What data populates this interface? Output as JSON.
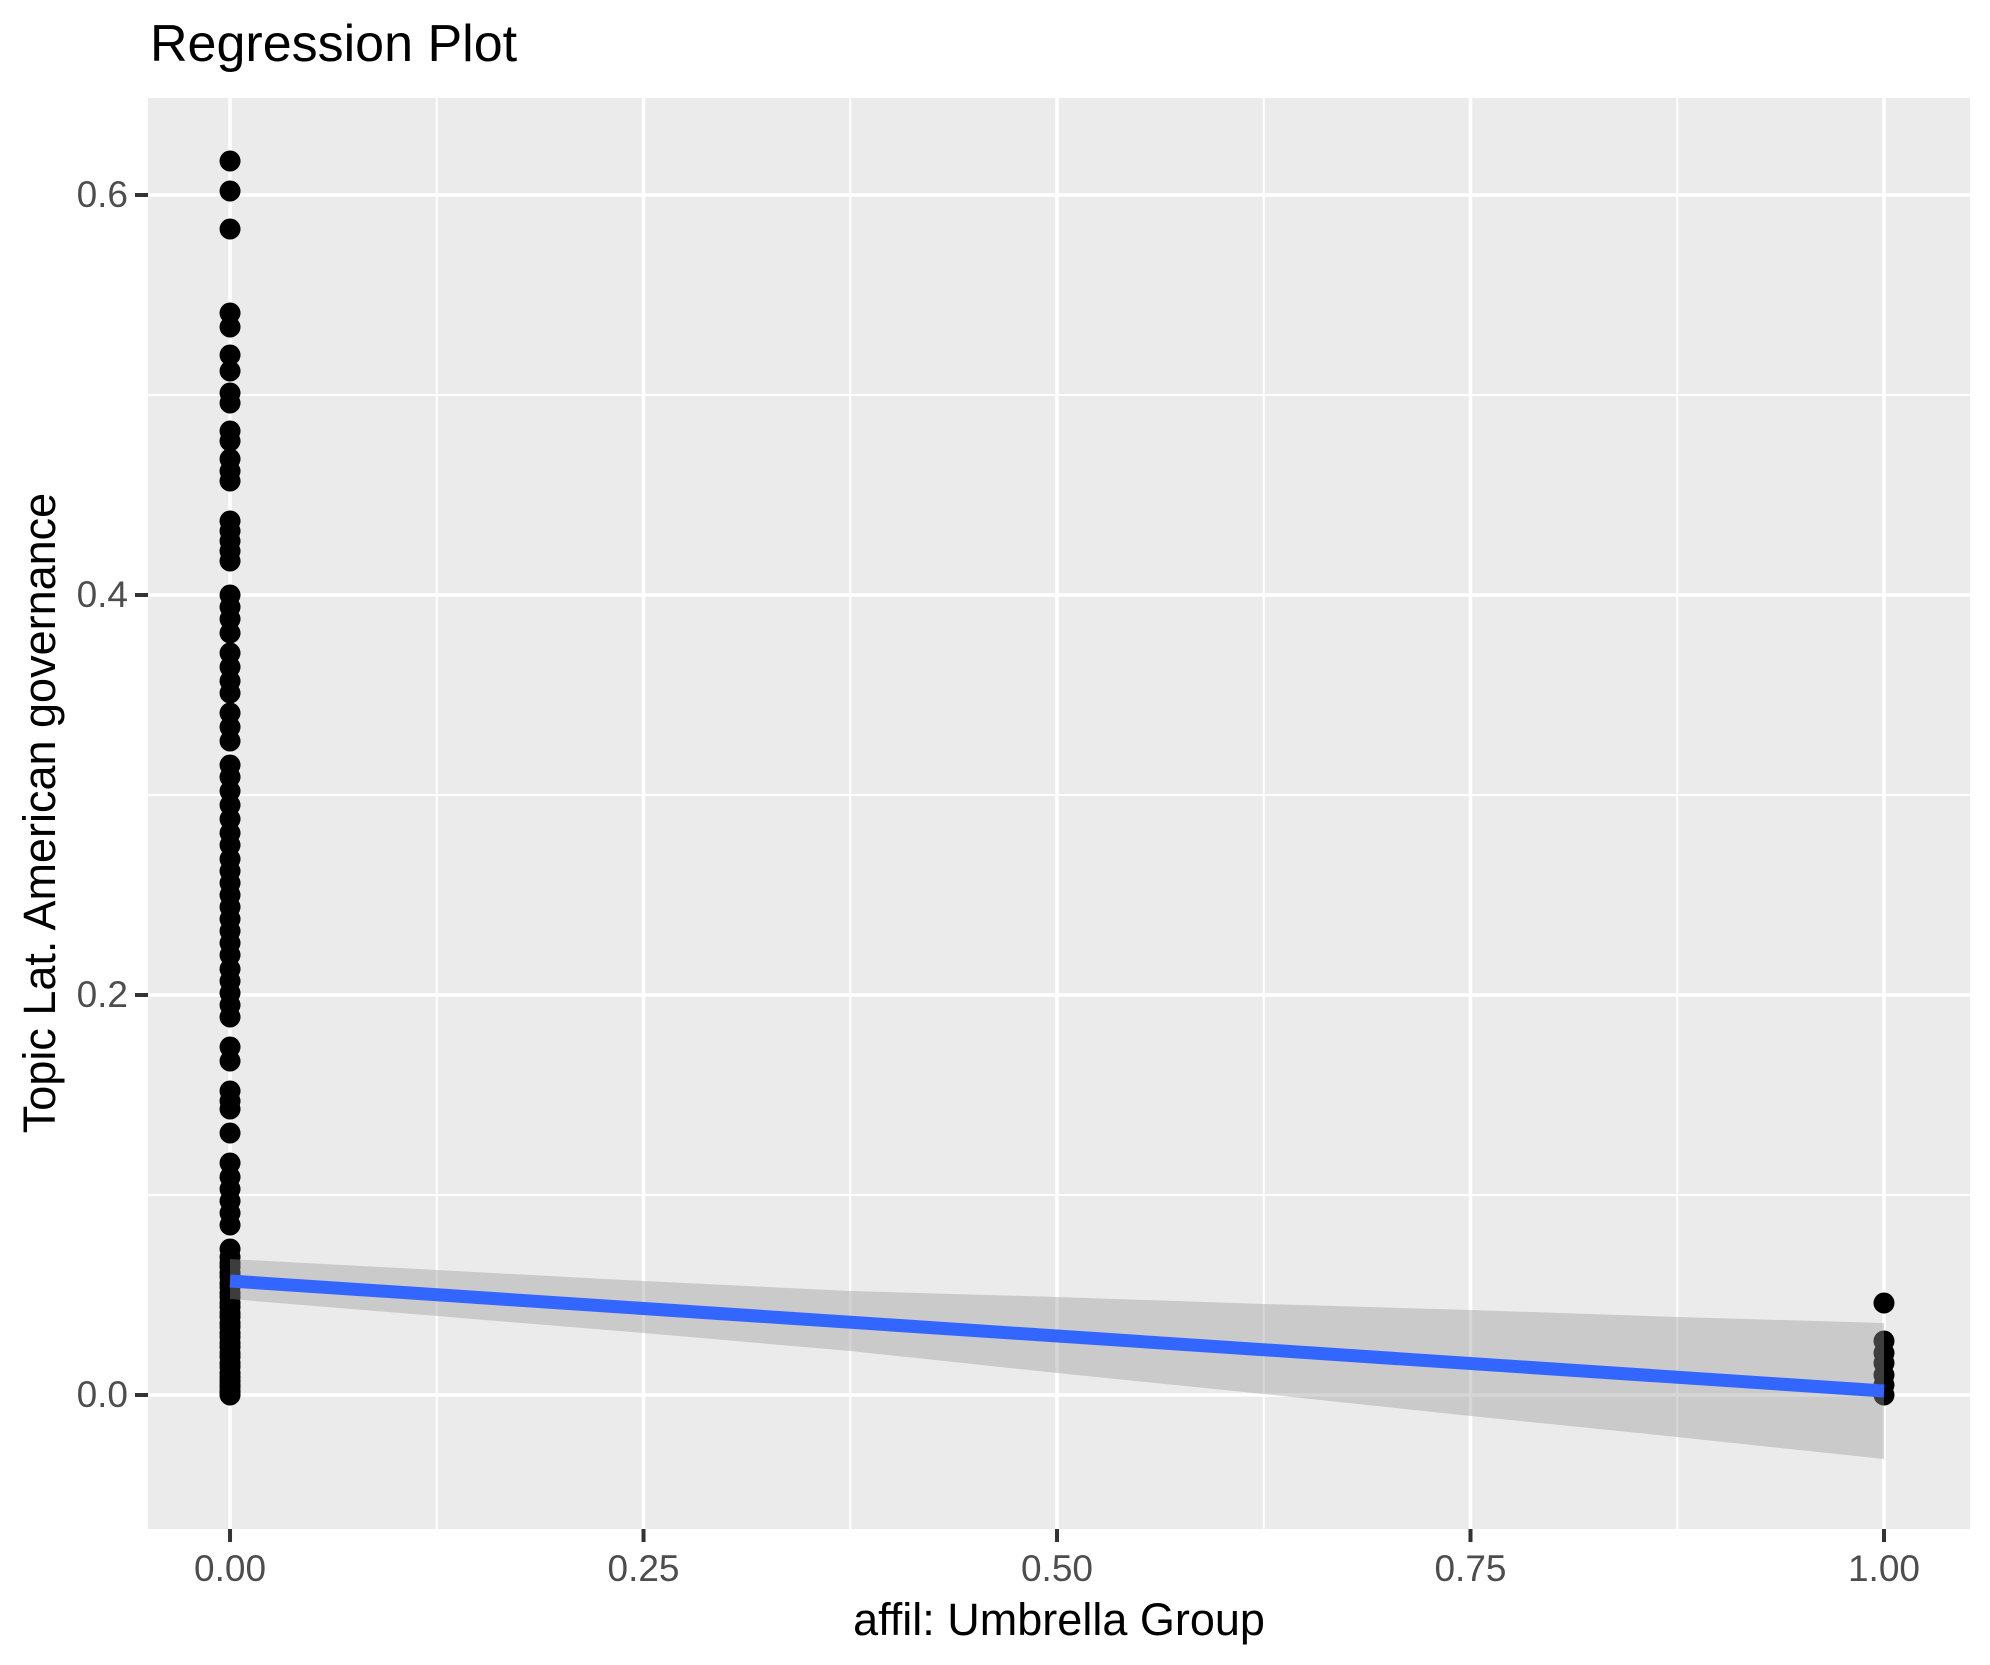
{
  "chart_data": {
    "type": "scatter",
    "title": "Regression Plot",
    "xlabel": "affil: Umbrella Group",
    "ylabel": "Topic Lat. American governance",
    "xlim": [
      -0.0496,
      1.052
    ],
    "ylim": [
      -0.067,
      0.6485
    ],
    "grid": "major+minor, white on grey panel",
    "legend_position": "none",
    "x_ticks": {
      "values": [
        0,
        0.25,
        0.5,
        0.75,
        1.0
      ],
      "labels": [
        "0.00",
        "0.25",
        "0.50",
        "0.75",
        "1.00"
      ]
    },
    "y_ticks": {
      "values": [
        0.0,
        0.2,
        0.4,
        0.6
      ],
      "labels": [
        "0.0",
        "0.2",
        "0.4",
        "0.6"
      ]
    },
    "x_minor_ticks": [
      0.125,
      0.375,
      0.625,
      0.875
    ],
    "y_minor_ticks": [
      0.1,
      0.3,
      0.5
    ],
    "series": [
      {
        "name": "observations at affil = 0",
        "x": 0,
        "y": [
          0.617,
          0.602,
          0.583,
          0.541,
          0.534,
          0.52,
          0.512,
          0.501,
          0.496,
          0.482,
          0.477,
          0.468,
          0.462,
          0.457,
          0.437,
          0.432,
          0.427,
          0.422,
          0.417,
          0.4,
          0.394,
          0.388,
          0.381,
          0.371,
          0.364,
          0.357,
          0.351,
          0.341,
          0.334,
          0.327,
          0.315,
          0.309,
          0.302,
          0.295,
          0.288,
          0.281,
          0.275,
          0.268,
          0.262,
          0.256,
          0.25,
          0.244,
          0.238,
          0.232,
          0.226,
          0.22,
          0.213,
          0.207,
          0.201,
          0.195,
          0.189,
          0.174,
          0.167,
          0.152,
          0.147,
          0.143,
          0.131,
          0.116,
          0.109,
          0.103,
          0.097,
          0.091,
          0.085,
          0.073,
          0.069,
          0.066,
          0.064,
          0.061,
          0.059,
          0.056,
          0.054,
          0.051,
          0.049,
          0.046,
          0.044,
          0.041,
          0.039,
          0.036,
          0.034,
          0.031,
          0.029,
          0.026,
          0.024,
          0.021,
          0.019,
          0.016,
          0.014,
          0.011,
          0.009,
          0.007,
          0.005,
          0.004,
          0.002,
          0.001,
          0.0
        ]
      },
      {
        "name": "observations at affil = 1",
        "x": 1,
        "y": [
          0.046,
          0.027,
          0.021,
          0.016,
          0.01,
          0.005,
          0.0
        ]
      }
    ],
    "regression_line": {
      "x": [
        0,
        1
      ],
      "y": [
        0.057,
        0.002
      ]
    },
    "ci_ribbon": {
      "x": [
        0,
        0.125,
        0.25,
        0.375,
        0.5,
        0.625,
        0.75,
        0.875,
        1
      ],
      "upper": [
        0.068,
        0.0625,
        0.057,
        0.052,
        0.049,
        0.0455,
        0.0425,
        0.039,
        0.036
      ],
      "lower": [
        0.048,
        0.0395,
        0.031,
        0.022,
        0.011,
        0.0005,
        -0.0105,
        -0.021,
        -0.032
      ]
    },
    "colors": {
      "panel_background": "#EBEBEB",
      "gridline": "#FFFFFF",
      "point": "#000000",
      "regression_line": "#3366FF",
      "ribbon": "#999999",
      "ribbon_alpha": 0.4,
      "tick_mark": "#333333",
      "tick_label_text": "#4D4D4D",
      "axis_title_text": "#000000",
      "title_text": "#000000"
    }
  }
}
